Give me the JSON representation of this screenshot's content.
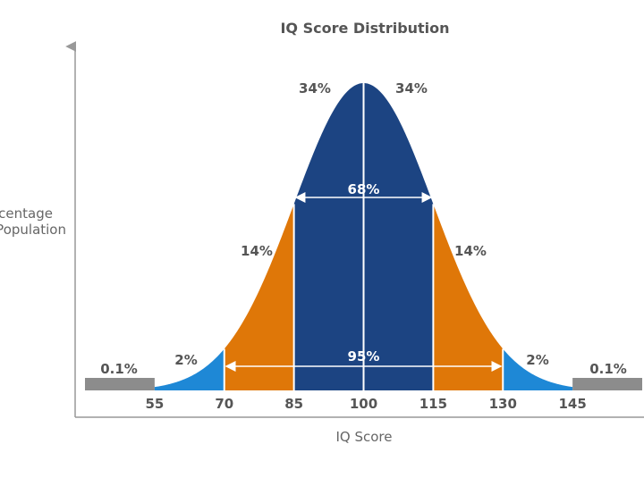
{
  "chart_data": {
    "type": "area",
    "title": "IQ Score Distribution",
    "xlabel": "IQ Score",
    "ylabel_lines": [
      "Percentage",
      "of Population"
    ],
    "mean": 100,
    "sd": 15,
    "xlim": [
      40,
      160
    ],
    "tick_values": [
      55,
      70,
      85,
      100,
      115,
      130,
      145
    ],
    "tick_labels": [
      "55",
      "70",
      "85",
      "100",
      "115",
      "130",
      "145"
    ],
    "regions": [
      {
        "from": 40,
        "to": 55,
        "label": "0.1%",
        "color": "#8c8c8c"
      },
      {
        "from": 55,
        "to": 70,
        "label": "2%",
        "color": "#1e88d6"
      },
      {
        "from": 70,
        "to": 85,
        "label": "14%",
        "color": "#df7708"
      },
      {
        "from": 85,
        "to": 100,
        "label": "34%",
        "color": "#1c4482"
      },
      {
        "from": 100,
        "to": 115,
        "label": "34%",
        "color": "#1c4482"
      },
      {
        "from": 115,
        "to": 130,
        "label": "14%",
        "color": "#df7708"
      },
      {
        "from": 130,
        "to": 145,
        "label": "2%",
        "color": "#1e88d6"
      },
      {
        "from": 145,
        "to": 160,
        "label": "0.1%",
        "color": "#8c8c8c"
      }
    ],
    "spans": [
      {
        "from": 85,
        "to": 115,
        "label": "68%"
      },
      {
        "from": 70,
        "to": 130,
        "label": "95%"
      }
    ]
  }
}
